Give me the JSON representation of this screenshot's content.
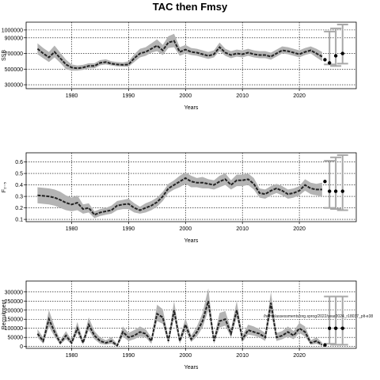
{
  "figure": {
    "title": "TAC then Fmsy"
  },
  "chart_data": [
    {
      "type": "line",
      "xlabel": "Years",
      "ylabel": "SSB",
      "xlim": [
        1972,
        2030
      ],
      "ylim": [
        250000,
        1100000
      ],
      "xticks": [
        1980,
        1990,
        2000,
        2010,
        2020
      ],
      "yticks": [
        300000,
        500000,
        700000,
        900000,
        1000000
      ],
      "ytick_labels": [
        "300000",
        "500000",
        "700000",
        "900000",
        "1000000"
      ],
      "grid": true,
      "x": [
        1974,
        1975,
        1976,
        1977,
        1978,
        1979,
        1980,
        1981,
        1982,
        1983,
        1984,
        1985,
        1986,
        1987,
        1988,
        1989,
        1990,
        1991,
        1992,
        1993,
        1994,
        1995,
        1996,
        1997,
        1998,
        1999,
        2000,
        2001,
        2002,
        2003,
        2004,
        2005,
        2006,
        2007,
        2008,
        2009,
        2010,
        2011,
        2012,
        2013,
        2014,
        2015,
        2016,
        2017,
        2018,
        2019,
        2020,
        2021,
        2022,
        2023,
        2024
      ],
      "median": [
        760000,
        700000,
        650000,
        720000,
        640000,
        560000,
        520000,
        510000,
        520000,
        540000,
        540000,
        580000,
        590000,
        570000,
        560000,
        555000,
        560000,
        640000,
        700000,
        720000,
        760000,
        800000,
        740000,
        840000,
        860000,
        720000,
        750000,
        720000,
        710000,
        690000,
        670000,
        690000,
        780000,
        710000,
        680000,
        700000,
        690000,
        710000,
        690000,
        680000,
        680000,
        660000,
        700000,
        740000,
        730000,
        710000,
        690000,
        720000,
        740000,
        700000,
        660000
      ],
      "lower": [
        690000,
        640000,
        590000,
        650000,
        580000,
        500000,
        480000,
        480000,
        490000,
        510000,
        510000,
        550000,
        560000,
        545000,
        535000,
        530000,
        530000,
        590000,
        650000,
        670000,
        710000,
        730000,
        680000,
        770000,
        780000,
        670000,
        700000,
        680000,
        670000,
        650000,
        630000,
        650000,
        730000,
        670000,
        640000,
        660000,
        650000,
        670000,
        650000,
        640000,
        640000,
        620000,
        660000,
        700000,
        690000,
        670000,
        650000,
        680000,
        700000,
        650000,
        600000
      ],
      "upper": [
        830000,
        770000,
        720000,
        800000,
        710000,
        620000,
        560000,
        545000,
        555000,
        575000,
        575000,
        615000,
        625000,
        600000,
        590000,
        585000,
        600000,
        690000,
        760000,
        780000,
        830000,
        880000,
        810000,
        920000,
        950000,
        780000,
        810000,
        770000,
        760000,
        740000,
        720000,
        740000,
        840000,
        760000,
        730000,
        750000,
        740000,
        760000,
        740000,
        730000,
        730000,
        710000,
        750000,
        790000,
        780000,
        760000,
        740000,
        770000,
        790000,
        760000,
        720000
      ],
      "projection_points": [
        {
          "x": 2024.5,
          "y": 620000
        },
        {
          "x": 2025.3,
          "y": 580000
        },
        {
          "x": 2026.4,
          "y": 670000
        },
        {
          "x": 2027.6,
          "y": 700000
        }
      ],
      "projection_bars": [
        {
          "x": 2025.3,
          "lo": 560000,
          "hi": 980000
        },
        {
          "x": 2026.4,
          "lo": 540000,
          "hi": 1020000
        },
        {
          "x": 2027.6,
          "lo": 570000,
          "hi": 1070000
        }
      ]
    },
    {
      "type": "line",
      "xlabel": "Years",
      "ylabel": "F₂₋₅",
      "xlim": [
        1972,
        2030
      ],
      "ylim": [
        0.08,
        0.68
      ],
      "xticks": [
        1980,
        1990,
        2000,
        2010,
        2020
      ],
      "yticks": [
        0.1,
        0.2,
        0.3,
        0.4,
        0.5,
        0.6
      ],
      "ytick_labels": [
        "0.1",
        "0.2",
        "0.3",
        "0.4",
        "0.5",
        "0.6"
      ],
      "grid": true,
      "x": [
        1974,
        1975,
        1976,
        1977,
        1978,
        1979,
        1980,
        1981,
        1982,
        1983,
        1984,
        1985,
        1986,
        1987,
        1988,
        1989,
        1990,
        1991,
        1992,
        1993,
        1994,
        1995,
        1996,
        1997,
        1998,
        1999,
        2000,
        2001,
        2002,
        2003,
        2004,
        2005,
        2006,
        2007,
        2008,
        2009,
        2010,
        2011,
        2012,
        2013,
        2014,
        2015,
        2016,
        2017,
        2018,
        2019,
        2020,
        2021,
        2022,
        2023,
        2024
      ],
      "median": [
        0.31,
        0.305,
        0.3,
        0.29,
        0.27,
        0.245,
        0.23,
        0.245,
        0.19,
        0.2,
        0.14,
        0.16,
        0.17,
        0.18,
        0.22,
        0.23,
        0.235,
        0.2,
        0.18,
        0.2,
        0.22,
        0.25,
        0.3,
        0.37,
        0.4,
        0.43,
        0.46,
        0.43,
        0.42,
        0.42,
        0.41,
        0.4,
        0.43,
        0.45,
        0.4,
        0.44,
        0.44,
        0.45,
        0.41,
        0.33,
        0.32,
        0.35,
        0.37,
        0.35,
        0.32,
        0.33,
        0.35,
        0.4,
        0.37,
        0.36,
        0.36
      ],
      "lower": [
        0.24,
        0.235,
        0.23,
        0.22,
        0.2,
        0.18,
        0.17,
        0.18,
        0.15,
        0.16,
        0.11,
        0.13,
        0.14,
        0.15,
        0.18,
        0.19,
        0.19,
        0.16,
        0.15,
        0.16,
        0.18,
        0.21,
        0.26,
        0.33,
        0.36,
        0.38,
        0.41,
        0.38,
        0.38,
        0.37,
        0.37,
        0.36,
        0.38,
        0.4,
        0.36,
        0.39,
        0.39,
        0.4,
        0.36,
        0.29,
        0.28,
        0.31,
        0.33,
        0.31,
        0.28,
        0.29,
        0.31,
        0.35,
        0.32,
        0.31,
        0.3
      ],
      "upper": [
        0.38,
        0.375,
        0.37,
        0.36,
        0.34,
        0.31,
        0.29,
        0.31,
        0.23,
        0.24,
        0.17,
        0.19,
        0.2,
        0.22,
        0.26,
        0.27,
        0.28,
        0.24,
        0.21,
        0.24,
        0.26,
        0.29,
        0.34,
        0.41,
        0.44,
        0.48,
        0.51,
        0.48,
        0.46,
        0.47,
        0.45,
        0.44,
        0.48,
        0.5,
        0.44,
        0.49,
        0.49,
        0.5,
        0.46,
        0.37,
        0.36,
        0.39,
        0.41,
        0.39,
        0.36,
        0.37,
        0.39,
        0.45,
        0.42,
        0.41,
        0.42
      ],
      "projection_points": [
        {
          "x": 2024.5,
          "y": 0.43
        },
        {
          "x": 2025.3,
          "y": 0.345
        },
        {
          "x": 2026.4,
          "y": 0.345
        },
        {
          "x": 2027.6,
          "y": 0.345
        }
      ],
      "projection_bars": [
        {
          "x": 2025.3,
          "lo": 0.2,
          "hi": 0.61
        },
        {
          "x": 2026.4,
          "lo": 0.19,
          "hi": 0.64
        },
        {
          "x": 2027.6,
          "lo": 0.18,
          "hi": 0.66
        }
      ]
    },
    {
      "type": "line",
      "xlabel": "Years",
      "ylabel": "Recruitment",
      "xlim": [
        1972,
        2030
      ],
      "ylim": [
        -10000,
        360000
      ],
      "xticks": [
        1980,
        1990,
        2000,
        2010,
        2020
      ],
      "yticks": [
        0,
        50000,
        100000,
        150000,
        200000,
        250000,
        300000
      ],
      "ytick_labels": [
        "0",
        "50000",
        "100000",
        "150000",
        "200000",
        "250000",
        "300000"
      ],
      "grid": true,
      "annotation": "/home/assessments/org.sprog/2022/year2024_r18037_plt-e38",
      "x": [
        1974,
        1975,
        1976,
        1977,
        1978,
        1979,
        1980,
        1981,
        1982,
        1983,
        1984,
        1985,
        1986,
        1987,
        1988,
        1989,
        1990,
        1991,
        1992,
        1993,
        1994,
        1995,
        1996,
        1997,
        1998,
        1999,
        2000,
        2001,
        2002,
        2003,
        2004,
        2005,
        2006,
        2007,
        2008,
        2009,
        2010,
        2011,
        2012,
        2013,
        2014,
        2015,
        2016,
        2017,
        2018,
        2019,
        2020,
        2021,
        2022,
        2023,
        2024
      ],
      "median": [
        70000,
        30000,
        150000,
        80000,
        20000,
        60000,
        20000,
        100000,
        20000,
        120000,
        60000,
        30000,
        20000,
        30000,
        5000,
        80000,
        50000,
        60000,
        80000,
        70000,
        30000,
        180000,
        160000,
        30000,
        200000,
        30000,
        120000,
        40000,
        80000,
        140000,
        250000,
        30000,
        140000,
        150000,
        70000,
        200000,
        40000,
        90000,
        80000,
        70000,
        50000,
        240000,
        50000,
        60000,
        80000,
        60000,
        100000,
        80000,
        20000,
        30000,
        10000
      ],
      "lower": [
        50000,
        15000,
        110000,
        55000,
        10000,
        40000,
        10000,
        75000,
        10000,
        90000,
        40000,
        15000,
        10000,
        15000,
        0,
        55000,
        30000,
        40000,
        55000,
        50000,
        15000,
        140000,
        125000,
        15000,
        160000,
        15000,
        90000,
        25000,
        55000,
        105000,
        200000,
        15000,
        105000,
        115000,
        50000,
        160000,
        25000,
        65000,
        60000,
        50000,
        30000,
        190000,
        30000,
        40000,
        55000,
        40000,
        75000,
        55000,
        10000,
        15000,
        3000
      ],
      "upper": [
        95000,
        50000,
        200000,
        110000,
        35000,
        85000,
        35000,
        135000,
        35000,
        160000,
        85000,
        50000,
        35000,
        50000,
        15000,
        110000,
        75000,
        90000,
        110000,
        95000,
        50000,
        230000,
        205000,
        50000,
        250000,
        50000,
        155000,
        60000,
        110000,
        185000,
        320000,
        50000,
        185000,
        195000,
        95000,
        250000,
        60000,
        120000,
        110000,
        95000,
        75000,
        300000,
        75000,
        85000,
        110000,
        85000,
        130000,
        110000,
        35000,
        50000,
        22000
      ],
      "projection_points": [
        {
          "x": 2024.5,
          "y": 8000
        },
        {
          "x": 2025.3,
          "y": 100000
        },
        {
          "x": 2026.4,
          "y": 100000
        },
        {
          "x": 2027.6,
          "y": 100000
        }
      ],
      "projection_bars": [
        {
          "x": 2025.3,
          "lo": 15000,
          "hi": 275000
        },
        {
          "x": 2026.4,
          "lo": 10000,
          "hi": 275000
        },
        {
          "x": 2027.6,
          "lo": 10000,
          "hi": 275000
        }
      ]
    }
  ]
}
